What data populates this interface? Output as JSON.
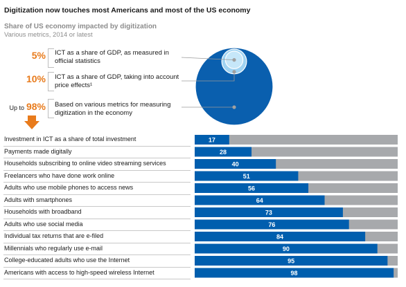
{
  "title": "Digitization now touches most Americans and most of the US economy",
  "subtitle": "Share of US economy impacted by digitization",
  "subnote": "Various metrics, 2014 or latest",
  "callouts": [
    {
      "prefix": "",
      "value": "5%",
      "text": "ICT as a share of GDP, as measured in official statistics"
    },
    {
      "prefix": "",
      "value": "10%",
      "text": "ICT as a share of GDP, taking into account price effects¹"
    },
    {
      "prefix": "Up to",
      "value": "98%",
      "text": "Based on various metrics for measuring digitization in the economy"
    }
  ],
  "colors": {
    "accent": "#e87b1c",
    "bar": "#005eae",
    "track": "#a7a9ac",
    "circle_big": "#0a5fae",
    "circle_small": "#9fd3f2"
  },
  "chart_data": {
    "type": "bar",
    "orientation": "horizontal",
    "xlim": [
      0,
      100
    ],
    "categories": [
      "Investment in ICT as a share of total investment",
      "Payments made digitally",
      "Households subscribing to online video streaming services",
      "Freelancers who have done work online",
      "Adults who use mobile phones to access news",
      "Adults with smartphones",
      "Households with broadband",
      "Adults who use social media",
      "Individual tax returns that are e-filed",
      "Millennials who regularly use e-mail",
      "College-educated adults who use the Internet",
      "Americans with access to high-speed wireless Internet"
    ],
    "values": [
      17,
      28,
      40,
      51,
      56,
      64,
      73,
      76,
      84,
      90,
      95,
      98
    ]
  },
  "bubble_chart": {
    "type": "nested-circles",
    "values": [
      5,
      10,
      98
    ]
  }
}
